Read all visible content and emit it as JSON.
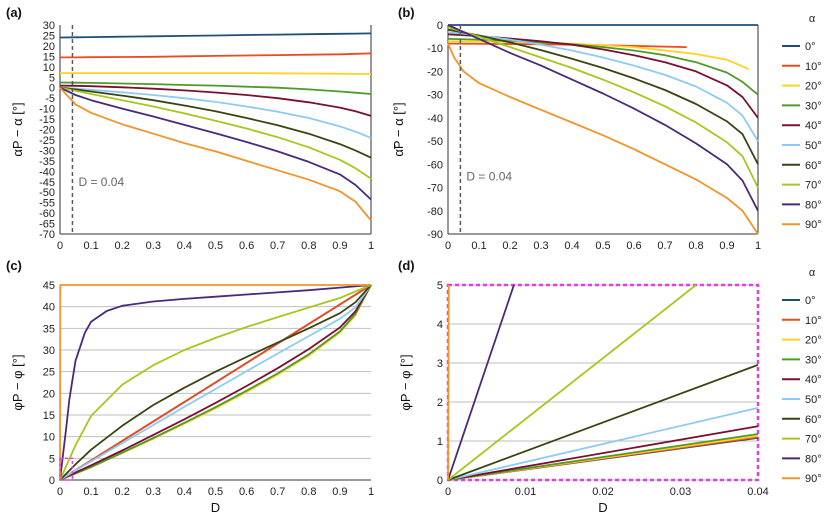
{
  "colors": {
    "0": "#1f4e79",
    "10": "#ed4a1f",
    "20": "#ffd21f",
    "30": "#4f9a2c",
    "40": "#7a1030",
    "50": "#8ecbf2",
    "60": "#3a4412",
    "70": "#a6c81e",
    "80": "#4a2a78",
    "90": "#f3932b",
    "grid": "#bfbfbf",
    "dashed": "#595959",
    "zoom_box": "#e040e0"
  },
  "legend": {
    "title": "α",
    "labels": [
      "0°",
      "10°",
      "20°",
      "30°",
      "40°",
      "50°",
      "60°",
      "70°",
      "80°",
      "90°"
    ]
  },
  "annotations": {
    "a": "D = 0.04",
    "b": "D = 0.04"
  },
  "chart_data": [
    {
      "panel": "(a)",
      "type": "line",
      "xlabel": "",
      "ylabel": "αP − α [°]",
      "xlim": [
        0,
        1
      ],
      "ylim": [
        -70,
        30
      ],
      "xticks": [
        "0",
        "0.1",
        "0.2",
        "0.3",
        "0.4",
        "0.5",
        "0.6",
        "0.7",
        "0.8",
        "0.9",
        "1"
      ],
      "yticks": [
        "30",
        "25",
        "20",
        "15",
        "10",
        "5",
        "0",
        "-5",
        "-10",
        "-15",
        "-20",
        "-25",
        "-30",
        "-35",
        "-40",
        "-45",
        "-50",
        "-55",
        "-60",
        "-65",
        "-70"
      ],
      "grid": false,
      "x": [
        0,
        0.05,
        0.1,
        0.2,
        0.3,
        0.4,
        0.5,
        0.6,
        0.7,
        0.8,
        0.9,
        0.95,
        1
      ],
      "series": [
        {
          "name": "0°",
          "values": [
            24,
            24.1,
            24.2,
            24.4,
            24.6,
            24.8,
            25,
            25.2,
            25.4,
            25.6,
            25.8,
            25.9,
            26
          ]
        },
        {
          "name": "10°",
          "values": [
            14.5,
            14.5,
            14.6,
            14.7,
            14.8,
            15,
            15.2,
            15.4,
            15.6,
            15.8,
            16,
            16.2,
            16.4
          ]
        },
        {
          "name": "20°",
          "values": [
            7,
            7,
            7,
            7,
            7,
            7,
            7,
            7,
            6.9,
            6.8,
            6.7,
            6.6,
            6.5
          ]
        },
        {
          "name": "30°",
          "values": [
            2.5,
            2.4,
            2.3,
            2,
            1.7,
            1.3,
            1,
            0.5,
            0,
            -0.8,
            -1.8,
            -2.4,
            -3
          ]
        },
        {
          "name": "40°",
          "values": [
            1,
            0.9,
            0.7,
            0.2,
            -0.5,
            -1.3,
            -2.3,
            -3.5,
            -5,
            -7,
            -9.5,
            -11.3,
            -13.5
          ]
        },
        {
          "name": "50°",
          "values": [
            0,
            -0.4,
            -1,
            -2.2,
            -3.5,
            -5,
            -6.8,
            -9,
            -11.5,
            -14.5,
            -18.5,
            -21,
            -24
          ]
        },
        {
          "name": "60°",
          "values": [
            0,
            -0.8,
            -1.8,
            -3.8,
            -6,
            -8.5,
            -11.3,
            -14.5,
            -18,
            -22,
            -27,
            -30,
            -33.5
          ]
        },
        {
          "name": "70°",
          "values": [
            0,
            -1.5,
            -3,
            -6,
            -9,
            -12.3,
            -15.8,
            -19.5,
            -23.7,
            -28.5,
            -34.5,
            -38.5,
            -43.5
          ]
        },
        {
          "name": "80°",
          "values": [
            0,
            -3.5,
            -6,
            -10,
            -13.8,
            -17.8,
            -21.8,
            -26,
            -30.5,
            -35.5,
            -41.5,
            -46.5,
            -53.5
          ]
        },
        {
          "name": "90°",
          "values": [
            0,
            -8,
            -12,
            -17.5,
            -22,
            -26.5,
            -30.5,
            -35,
            -39.5,
            -44,
            -49.5,
            -54.5,
            -63.5
          ]
        }
      ],
      "vline_x": 0.04
    },
    {
      "panel": "(b)",
      "type": "line",
      "xlabel": "",
      "ylabel": "α̃P − α [°]",
      "xlim": [
        0,
        1
      ],
      "ylim": [
        -90,
        0
      ],
      "xticks": [
        "0",
        "0.1",
        "0.2",
        "0.3",
        "0.4",
        "0.5",
        "0.6",
        "0.7",
        "0.8",
        "0.9",
        "1"
      ],
      "yticks": [
        "0",
        "-10",
        "-20",
        "-30",
        "-40",
        "-50",
        "-60",
        "-70",
        "-80",
        "-90"
      ],
      "grid": false,
      "series": [
        {
          "name": "0°",
          "x": [
            0,
            0.5,
            1
          ],
          "values": [
            0,
            0,
            0
          ]
        },
        {
          "name": "10°",
          "x": [
            0,
            0.2,
            0.4,
            0.6,
            0.77
          ],
          "values": [
            -8,
            -8.2,
            -8.5,
            -9,
            -9.5
          ]
        },
        {
          "name": "20°",
          "x": [
            0,
            0.2,
            0.4,
            0.6,
            0.8,
            0.9,
            0.97
          ],
          "values": [
            -7,
            -7.2,
            -8,
            -9.5,
            -12.5,
            -15,
            -19
          ]
        },
        {
          "name": "30°",
          "x": [
            0,
            0.1,
            0.2,
            0.3,
            0.4,
            0.5,
            0.6,
            0.7,
            0.8,
            0.9,
            0.95,
            1
          ],
          "values": [
            -6,
            -6.3,
            -6.8,
            -7.5,
            -8.3,
            -9.5,
            -11,
            -13,
            -16,
            -20.5,
            -24.5,
            -30
          ]
        },
        {
          "name": "40°",
          "x": [
            0,
            0.1,
            0.2,
            0.3,
            0.4,
            0.5,
            0.6,
            0.7,
            0.8,
            0.9,
            0.95,
            1
          ],
          "values": [
            -4,
            -4.8,
            -5.8,
            -7,
            -8.5,
            -10.5,
            -13,
            -16,
            -20,
            -26,
            -31,
            -40
          ]
        },
        {
          "name": "50°",
          "x": [
            0,
            0.1,
            0.2,
            0.3,
            0.4,
            0.5,
            0.6,
            0.7,
            0.8,
            0.9,
            0.95,
            1
          ],
          "values": [
            -3,
            -4.5,
            -6.3,
            -8.5,
            -11,
            -14,
            -17.5,
            -21.5,
            -26.5,
            -33.5,
            -39,
            -50
          ]
        },
        {
          "name": "60°",
          "x": [
            0,
            0.1,
            0.2,
            0.3,
            0.4,
            0.5,
            0.6,
            0.7,
            0.8,
            0.9,
            0.95,
            1
          ],
          "values": [
            -2,
            -4.5,
            -7.5,
            -10.8,
            -14.5,
            -18.5,
            -23,
            -28,
            -34,
            -41.5,
            -47,
            -60
          ]
        },
        {
          "name": "70°",
          "x": [
            0,
            0.1,
            0.2,
            0.3,
            0.4,
            0.5,
            0.6,
            0.7,
            0.8,
            0.9,
            0.95,
            1
          ],
          "values": [
            -1,
            -5,
            -9.5,
            -14,
            -18.5,
            -23.5,
            -29,
            -35,
            -42,
            -50.5,
            -56.5,
            -70
          ]
        },
        {
          "name": "80°",
          "x": [
            0,
            0.1,
            0.2,
            0.3,
            0.4,
            0.5,
            0.6,
            0.7,
            0.8,
            0.9,
            0.95,
            1
          ],
          "values": [
            0,
            -6,
            -12,
            -17.5,
            -23.5,
            -29.5,
            -36,
            -43,
            -51,
            -60,
            -67,
            -80
          ]
        },
        {
          "name": "90°",
          "x": [
            0,
            0.02,
            0.05,
            0.1,
            0.2,
            0.3,
            0.4,
            0.5,
            0.6,
            0.7,
            0.8,
            0.9,
            0.95,
            1
          ],
          "values": [
            -8,
            -14,
            -20,
            -25,
            -31,
            -36.5,
            -42,
            -47.5,
            -53.5,
            -60,
            -66.5,
            -74.5,
            -80,
            -90
          ]
        }
      ],
      "vline_x": 0.04
    },
    {
      "panel": "(c)",
      "type": "line",
      "xlabel": "D",
      "ylabel": "φP − φ [°]",
      "xlim": [
        0,
        1
      ],
      "ylim": [
        0,
        45
      ],
      "xticks": [
        "0",
        "0.1",
        "0.2",
        "0.3",
        "0.4",
        "0.5",
        "0.6",
        "0.7",
        "0.8",
        "0.9",
        "1"
      ],
      "yticks": [
        "45",
        "40",
        "35",
        "30",
        "25",
        "20",
        "15",
        "10",
        "5",
        "0"
      ],
      "grid": true,
      "series": [
        {
          "name": "0°",
          "x": [
            0,
            1
          ],
          "values": [
            0,
            45
          ]
        },
        {
          "name": "10°",
          "x": [
            0,
            1
          ],
          "values": [
            0,
            45
          ]
        },
        {
          "name": "20°",
          "x": [
            0,
            0.05,
            0.1,
            0.2,
            0.3,
            0.4,
            0.5,
            0.6,
            0.7,
            0.8,
            0.9,
            0.95,
            1
          ],
          "values": [
            0,
            1.5,
            3,
            6.2,
            9.5,
            13,
            16.5,
            20.3,
            24.3,
            28.7,
            34,
            38,
            45
          ]
        },
        {
          "name": "30°",
          "x": [
            0,
            0.05,
            0.1,
            0.2,
            0.3,
            0.4,
            0.5,
            0.6,
            0.7,
            0.8,
            0.9,
            0.95,
            1
          ],
          "values": [
            0,
            1.5,
            3,
            6.3,
            9.7,
            13.2,
            16.8,
            20.6,
            24.6,
            29,
            34.3,
            38.3,
            45
          ]
        },
        {
          "name": "40°",
          "x": [
            0,
            0.05,
            0.1,
            0.2,
            0.3,
            0.4,
            0.5,
            0.6,
            0.7,
            0.8,
            0.9,
            0.95,
            1
          ],
          "values": [
            0,
            1.7,
            3.4,
            6.8,
            10.4,
            14,
            17.8,
            21.7,
            25.8,
            30.2,
            35.2,
            38.9,
            45
          ]
        },
        {
          "name": "50°",
          "x": [
            0,
            0.05,
            0.1,
            0.2,
            0.3,
            0.4,
            0.5,
            0.6,
            0.7,
            0.8,
            0.9,
            0.95,
            1
          ],
          "values": [
            0,
            2.2,
            4.3,
            8.5,
            12.7,
            16.9,
            21,
            25.1,
            29.2,
            33.2,
            37.2,
            39.8,
            45
          ]
        },
        {
          "name": "60°",
          "x": [
            0,
            0.05,
            0.1,
            0.2,
            0.3,
            0.4,
            0.5,
            0.6,
            0.7,
            0.8,
            0.9,
            0.95,
            1
          ],
          "values": [
            0,
            3.6,
            7,
            12.5,
            17.3,
            21.3,
            25,
            28.4,
            31.7,
            35,
            38.5,
            41,
            45
          ]
        },
        {
          "name": "70°",
          "x": [
            0,
            0.05,
            0.1,
            0.2,
            0.3,
            0.4,
            0.5,
            0.6,
            0.7,
            0.8,
            0.9,
            0.95,
            1
          ],
          "values": [
            0,
            8,
            14.8,
            22,
            26.5,
            30,
            32.8,
            35.3,
            37.6,
            39.8,
            42,
            43.5,
            45
          ]
        },
        {
          "name": "80°",
          "x": [
            0,
            0.01,
            0.02,
            0.03,
            0.05,
            0.08,
            0.1,
            0.15,
            0.2,
            0.3,
            0.4,
            0.5,
            0.6,
            0.7,
            0.8,
            0.9,
            1
          ],
          "values": [
            0,
            6,
            12,
            18.5,
            27.5,
            34,
            36.5,
            39,
            40.2,
            41.2,
            41.8,
            42.3,
            42.8,
            43.3,
            43.8,
            44.4,
            45
          ]
        },
        {
          "name": "90°",
          "x": [
            0,
            0.001,
            1
          ],
          "values": [
            0,
            45,
            45
          ]
        }
      ],
      "zoom_box": {
        "xlim": [
          0,
          0.04
        ],
        "ylim": [
          0,
          5
        ]
      }
    },
    {
      "panel": "(d)",
      "type": "line",
      "xlabel": "D",
      "ylabel": "φP − φ [°]",
      "xlim": [
        0,
        0.04
      ],
      "ylim": [
        0,
        5
      ],
      "xticks": [
        "0",
        "0.01",
        "0.02",
        "0.03",
        "0.04"
      ],
      "yticks": [
        "5",
        "4",
        "3",
        "2",
        "1",
        "0"
      ],
      "grid": true,
      "series": [
        {
          "name": "0°",
          "x": [
            0,
            0.04
          ],
          "values": [
            0,
            1.08
          ]
        },
        {
          "name": "10°",
          "x": [
            0,
            0.04
          ],
          "values": [
            0,
            1.1
          ]
        },
        {
          "name": "20°",
          "x": [
            0,
            0.04
          ],
          "values": [
            0,
            1.13
          ]
        },
        {
          "name": "30°",
          "x": [
            0,
            0.04
          ],
          "values": [
            0,
            1.18
          ]
        },
        {
          "name": "40°",
          "x": [
            0,
            0.04
          ],
          "values": [
            0,
            1.38
          ]
        },
        {
          "name": "50°",
          "x": [
            0,
            0.04
          ],
          "values": [
            0,
            1.85
          ]
        },
        {
          "name": "60°",
          "x": [
            0,
            0.04
          ],
          "values": [
            0,
            2.95
          ]
        },
        {
          "name": "70°",
          "x": [
            0,
            0.032
          ],
          "values": [
            0,
            5
          ]
        },
        {
          "name": "80°",
          "x": [
            0,
            0.0085
          ],
          "values": [
            0,
            5
          ]
        },
        {
          "name": "90°",
          "x": [
            0,
            0.0001
          ],
          "values": [
            0,
            5
          ]
        }
      ],
      "frame_dashed": true
    }
  ]
}
